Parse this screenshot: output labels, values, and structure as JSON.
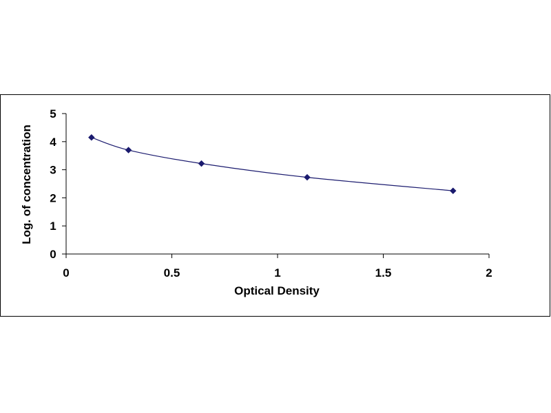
{
  "chart_data": {
    "type": "scatter",
    "title": "",
    "xlabel": "Optical Density",
    "ylabel": "Log. of concentration",
    "xlim": [
      0,
      2
    ],
    "ylim": [
      0,
      5
    ],
    "x_ticks": [
      "0",
      "0.5",
      "1",
      "1.5",
      "2"
    ],
    "y_ticks": [
      "0",
      "1",
      "2",
      "3",
      "4",
      "5"
    ],
    "grid": false,
    "legend": "none",
    "marker": "diamond",
    "marker_color": "#1a1a6e",
    "line_color": "#1a1a6e",
    "trendline": "smooth",
    "series": [
      {
        "x": [
          0.12,
          0.295,
          0.64,
          1.14,
          1.83
        ],
        "y": [
          4.15,
          3.7,
          3.22,
          2.73,
          2.25
        ]
      }
    ]
  }
}
